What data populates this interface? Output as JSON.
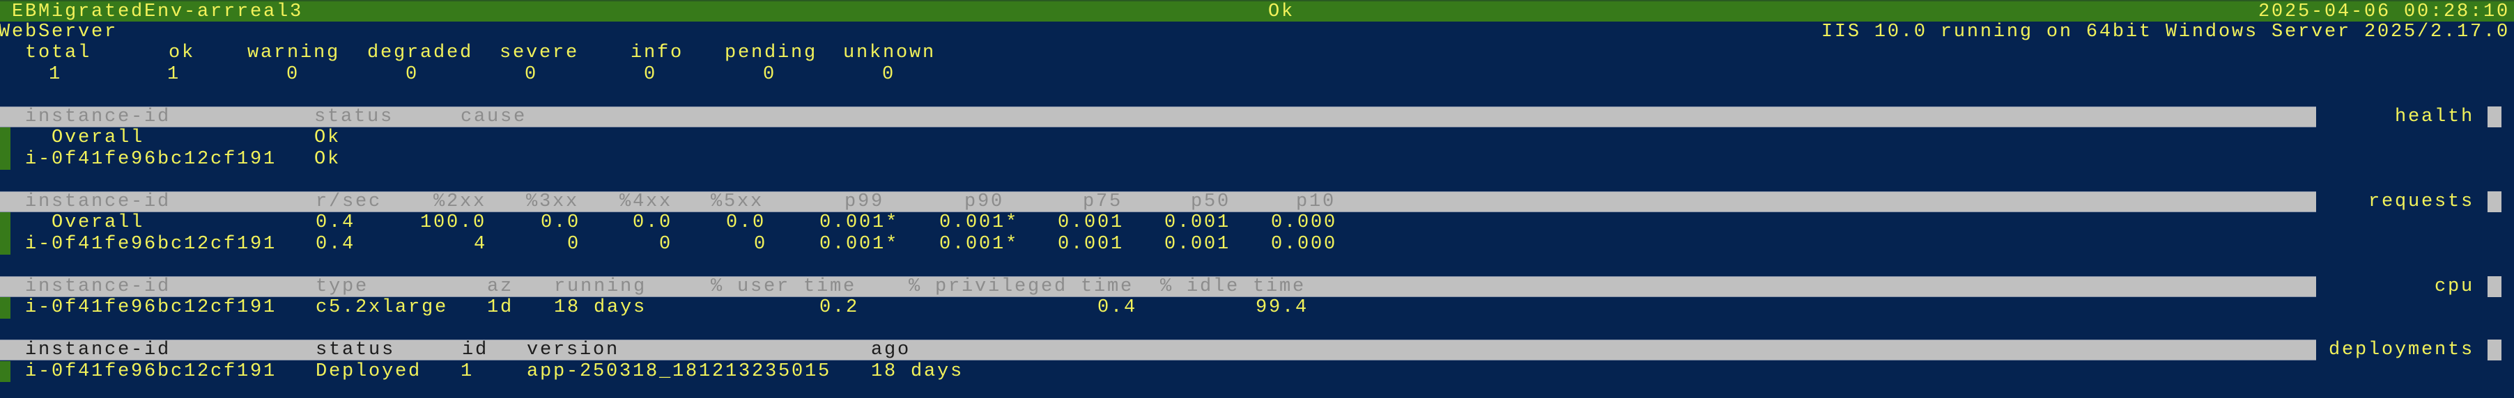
{
  "titlebar": {
    "env_name": "EBMigratedEnv-arrreal3",
    "status": "Ok",
    "datetime": "2025-04-06 00:28:10"
  },
  "tier": "WebServer",
  "platform": "IIS 10.0 running on 64bit Windows Server 2025/2.17.0",
  "summary": {
    "headers": [
      "total",
      "ok",
      "warning",
      "degraded",
      "severe",
      "info",
      "pending",
      "unknown"
    ],
    "values": [
      "1",
      "1",
      "0",
      "0",
      "0",
      "0",
      "0",
      "0"
    ]
  },
  "colors": {
    "background": "#052350",
    "titlebar": "#377a1a",
    "text": "#f2f25a",
    "header_bar": "#c0c0c0",
    "status_marker": "#377a1a"
  },
  "sections": {
    "health": {
      "label": "health",
      "headers": [
        "instance-id",
        "status",
        "cause"
      ],
      "rows": [
        [
          "  Overall",
          "Ok",
          ""
        ],
        [
          "i-0f41fe96bc12cf191",
          "Ok",
          ""
        ]
      ]
    },
    "requests": {
      "label": "requests",
      "headers": [
        "instance-id",
        "r/sec",
        "%2xx",
        "%3xx",
        "%4xx",
        "%5xx",
        "p99",
        "p90",
        "p75",
        "p50",
        "p10"
      ],
      "rows": [
        [
          "  Overall",
          "0.4",
          "100.0",
          "0.0",
          "0.0",
          "0.0",
          "0.001*",
          "0.001*",
          "0.001",
          "0.001",
          "0.000"
        ],
        [
          "i-0f41fe96bc12cf191",
          "0.4",
          "4",
          "0",
          "0",
          "0",
          "0.001*",
          "0.001*",
          "0.001",
          "0.001",
          "0.000"
        ]
      ]
    },
    "cpu": {
      "label": "cpu",
      "headers": [
        "instance-id",
        "type",
        "az",
        "running",
        "% user time",
        "% privileged time",
        "% idle time"
      ],
      "rows": [
        [
          "i-0f41fe96bc12cf191",
          "c5.2xlarge",
          "1d",
          "18 days",
          "0.2",
          "0.4",
          "99.4"
        ]
      ]
    },
    "deployments": {
      "label": "deployments",
      "headers": [
        "instance-id",
        "status",
        "id",
        "version",
        "ago"
      ],
      "rows": [
        [
          "i-0f41fe96bc12cf191",
          "Deployed",
          "1",
          "app-250318_181213235015",
          "18 days"
        ]
      ]
    }
  }
}
